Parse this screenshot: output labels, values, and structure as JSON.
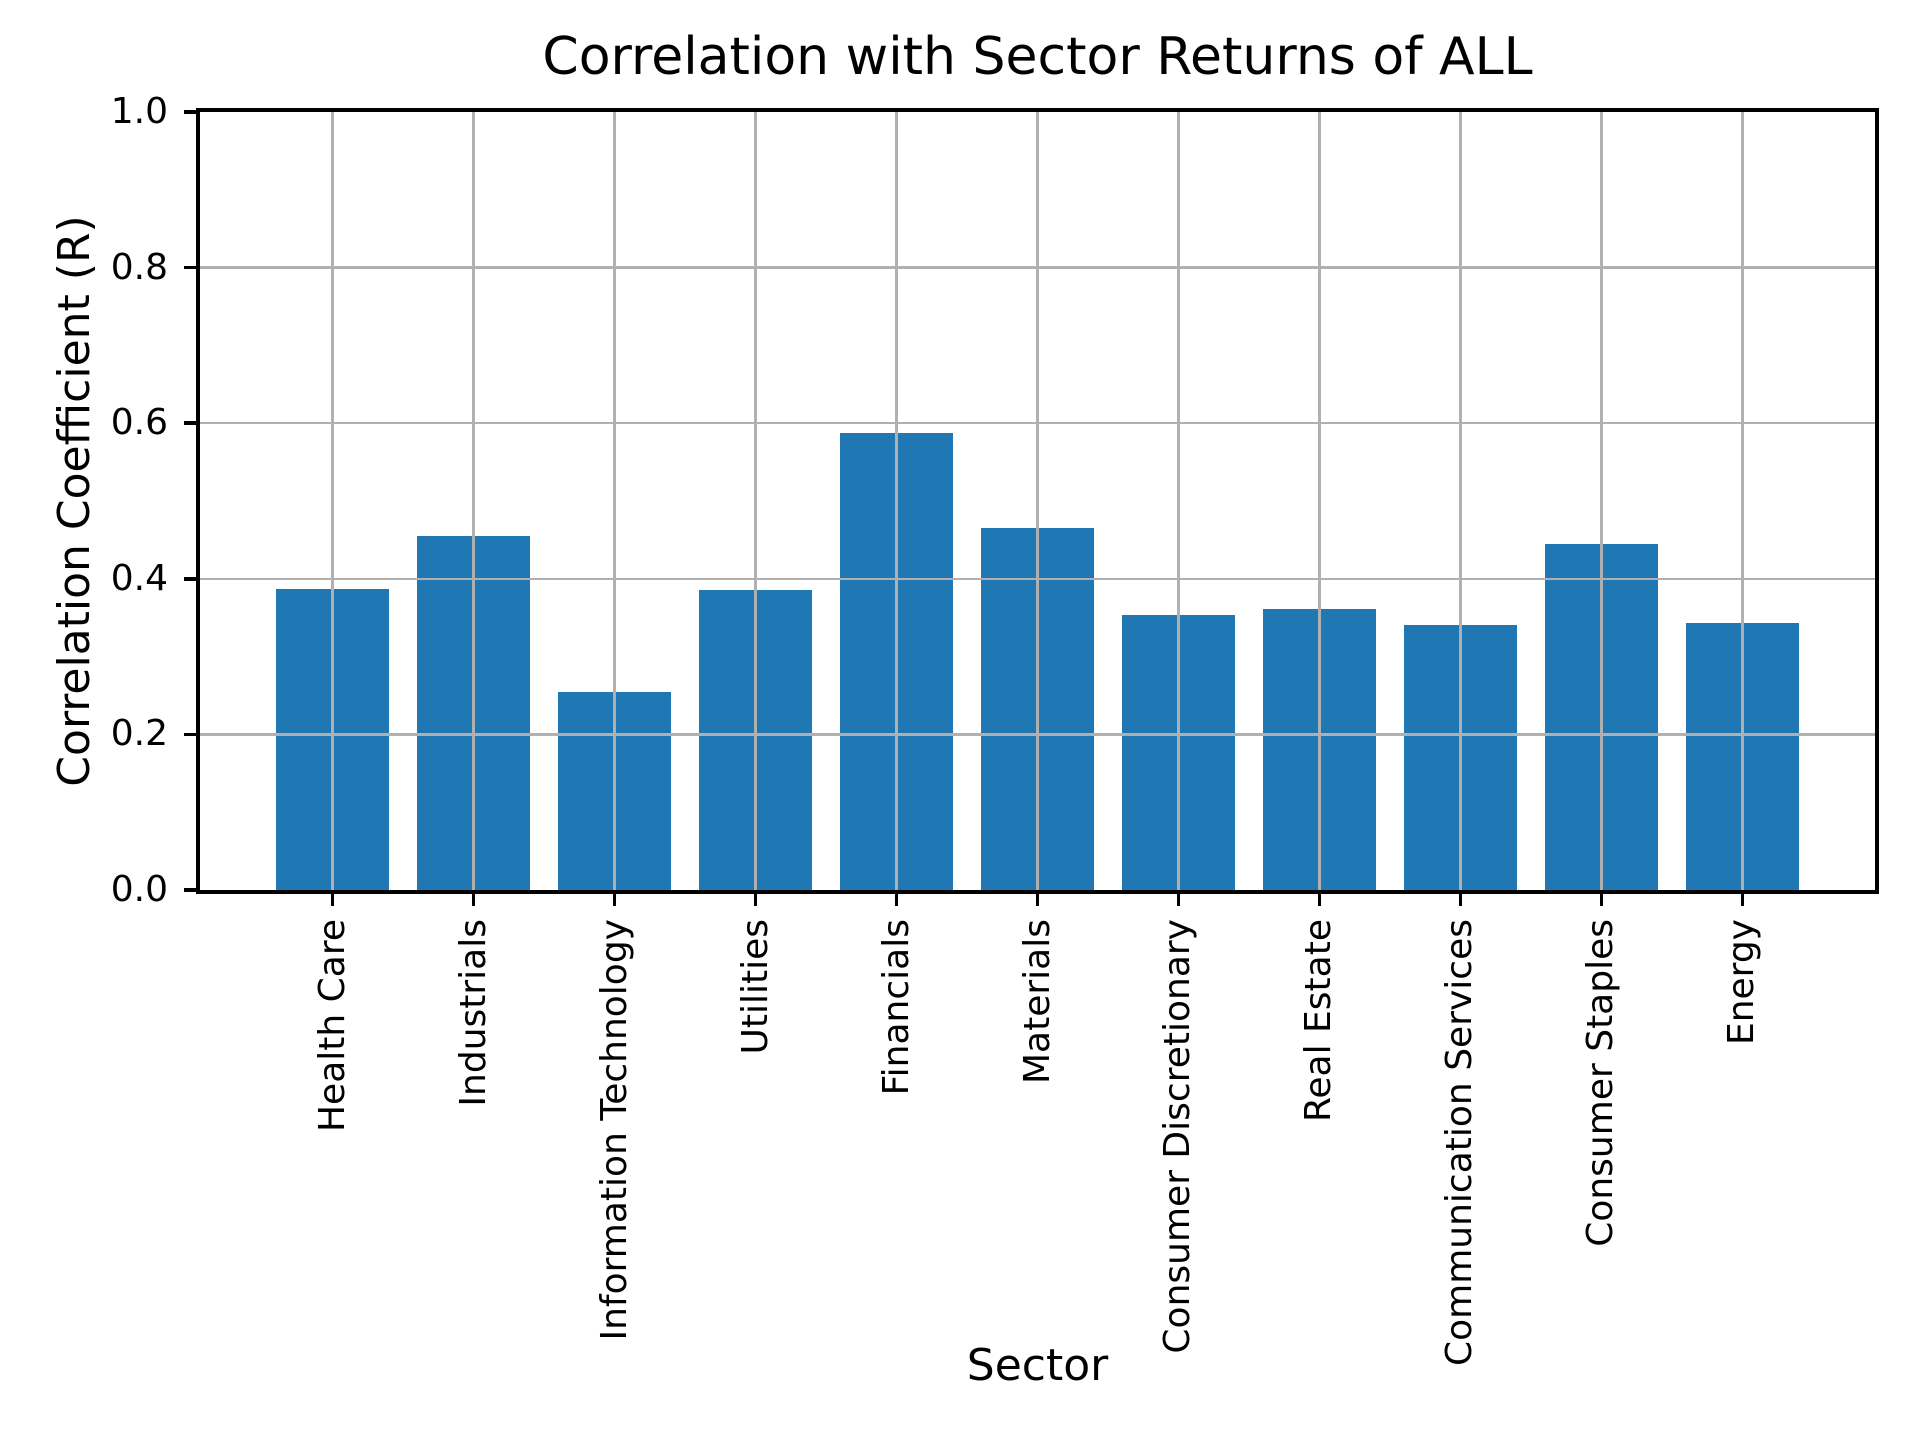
{
  "chart_data": {
    "type": "bar",
    "title": "Correlation with Sector Returns of ALL",
    "xlabel": "Sector",
    "ylabel": "Correlation Coefficient (R)",
    "categories": [
      "Health Care",
      "Industrials",
      "Information Technology",
      "Utilities",
      "Financials",
      "Materials",
      "Consumer Discretionary",
      "Real Estate",
      "Communication Services",
      "Consumer Staples",
      "Energy"
    ],
    "values": [
      0.387,
      0.455,
      0.255,
      0.385,
      0.588,
      0.465,
      0.354,
      0.361,
      0.34,
      0.445,
      0.343
    ],
    "ylim": [
      0.0,
      1.0
    ],
    "yticks": [
      0.0,
      0.2,
      0.4,
      0.6,
      0.8,
      1.0
    ],
    "ytick_labels": [
      "0.0",
      "0.2",
      "0.4",
      "0.6",
      "0.8",
      "1.0"
    ],
    "grid": true,
    "legend": "none",
    "bar_color": "#1f77b4",
    "grid_color": "#b0b0b0",
    "spine_color": "#000000",
    "background_color": "#ffffff"
  }
}
